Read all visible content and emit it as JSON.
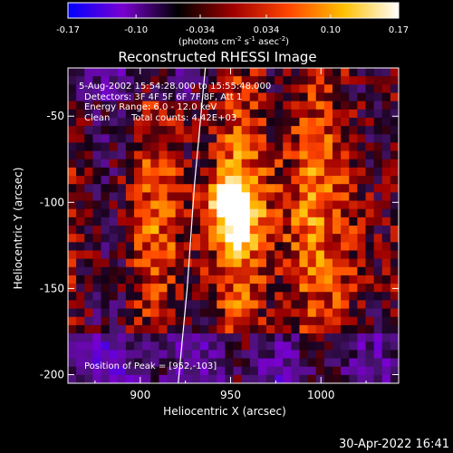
{
  "colorbar": {
    "ticks": [
      "-0.17",
      "-0.10",
      "-0.034",
      "0.034",
      "0.10",
      "0.17"
    ],
    "tick_values": [
      -0.17,
      -0.1,
      -0.034,
      0.034,
      0.1,
      0.17
    ],
    "range": [
      -0.17,
      0.17
    ],
    "unit_prefix": "(photons cm",
    "unit_exp1": "-2",
    "unit_mid": " s",
    "unit_exp2": "-1",
    "unit_mid2": " asec",
    "unit_exp3": "-2",
    "unit_suffix": ")",
    "stops": [
      "#0000ff",
      "#7a00d0",
      "#000000",
      "#a00000",
      "#ff4500",
      "#ffc000",
      "#ffffff"
    ]
  },
  "chart_data": {
    "type": "heatmap",
    "title": "Reconstructed RHESSI Image",
    "xlabel": "Heliocentric X (arcsec)",
    "ylabel": "Heliocentric Y (arcsec)",
    "xlim": [
      860,
      1043
    ],
    "ylim": [
      -205,
      -22
    ],
    "x_ticks": [
      900,
      950,
      1000
    ],
    "y_ticks": [
      -50,
      -100,
      -150,
      -200
    ],
    "info_lines": [
      "5-Aug-2002 15:54:28.000 to 15:55:48.000",
      "Detectors: 3F 4F 5F 6F 7F 8F, Att 1",
      "Energy Range: 6.0 - 12.0 keV"
    ],
    "clean_label": "Clean",
    "counts_label": "Total counts: 4.42E+03",
    "peak_label": "Position of Peak = [952,-103]",
    "peak": [
      952,
      -103
    ],
    "limb_points": [
      [
        936,
        -22
      ],
      [
        930,
        -90
      ],
      [
        926,
        -150
      ],
      [
        921,
        -205
      ]
    ]
  },
  "timestamp": "30-Apr-2022 16:41"
}
